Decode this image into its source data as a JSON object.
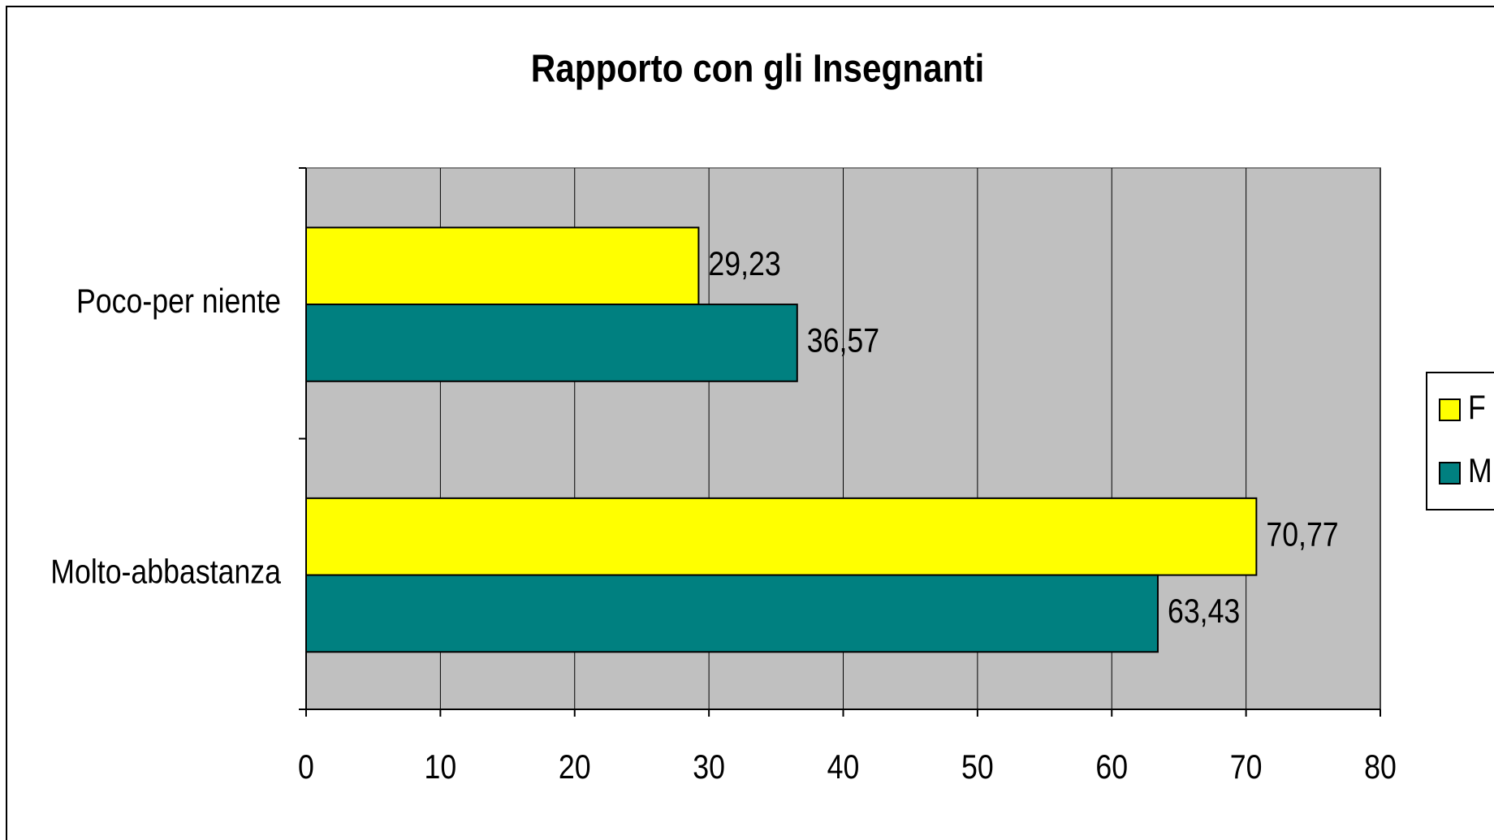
{
  "chart_data": {
    "type": "bar",
    "orientation": "horizontal",
    "title": "Rapporto con gli Insegnanti",
    "categories": [
      "Poco-per niente",
      "Molto-abbastanza"
    ],
    "series": [
      {
        "name": "F",
        "color": "#ffff00",
        "values": [
          29.23,
          70.77
        ],
        "value_labels": [
          "29,23",
          "70,77"
        ]
      },
      {
        "name": "M",
        "color": "#008080",
        "values": [
          36.57,
          63.43
        ],
        "value_labels": [
          "36,57",
          "63,43"
        ]
      }
    ],
    "xlim": [
      0,
      80
    ],
    "xticks": [
      0,
      10,
      20,
      30,
      40,
      50,
      60,
      70,
      80
    ],
    "grid": true,
    "legend": "right",
    "background": "#c0c0c0"
  }
}
